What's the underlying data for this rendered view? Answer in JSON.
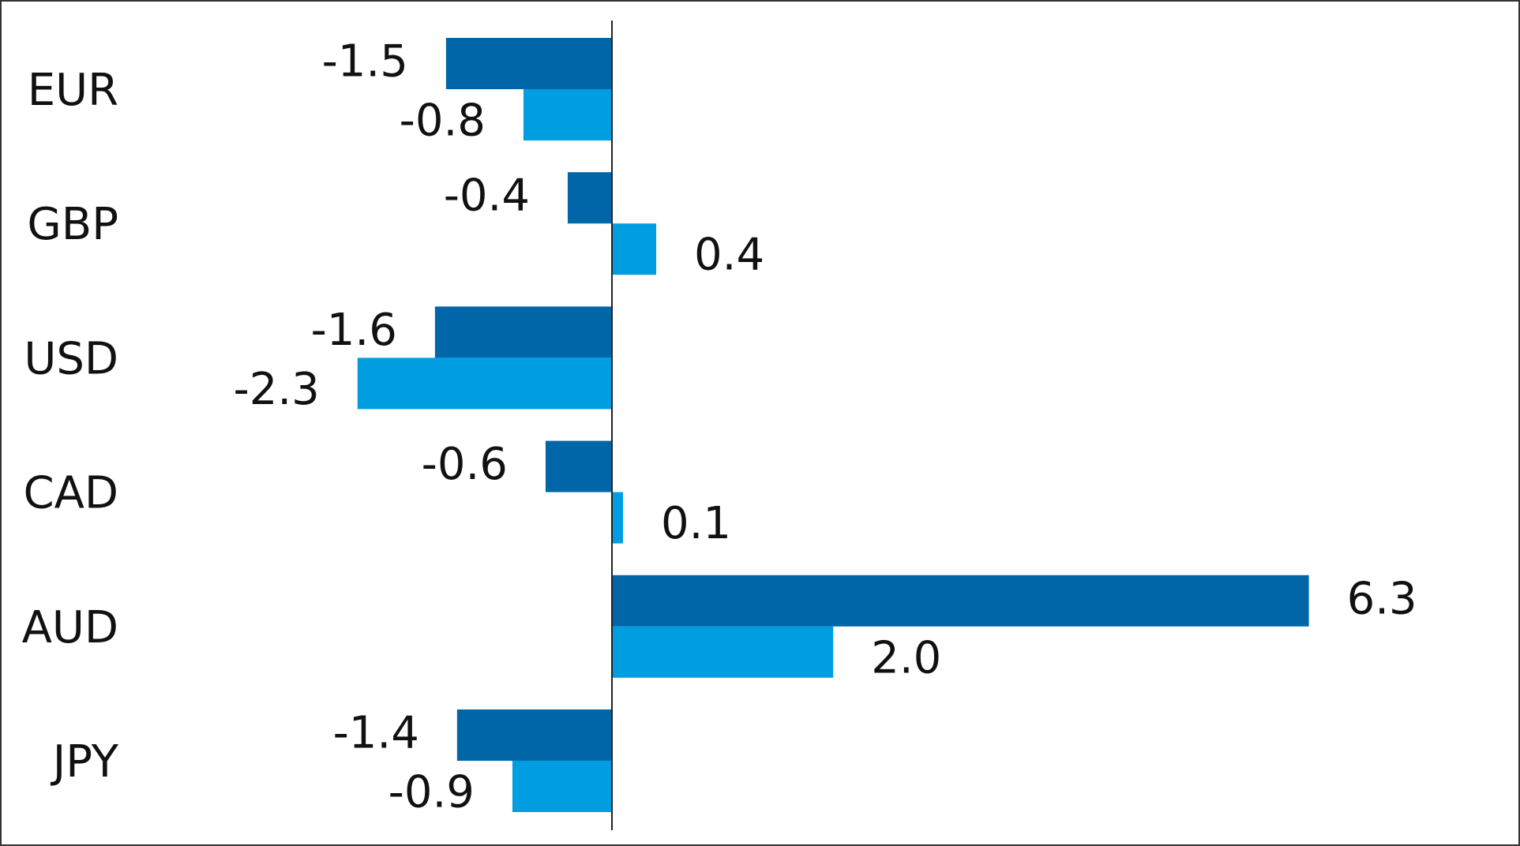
{
  "chart_data": {
    "type": "bar",
    "orientation": "horizontal",
    "categories": [
      "EUR",
      "GBP",
      "USD",
      "CAD",
      "AUD",
      "JPY"
    ],
    "series": [
      {
        "color": "#0066a8",
        "values": [
          -1.5,
          -0.4,
          -1.6,
          -0.6,
          6.3,
          -1.4
        ],
        "labels": [
          "-1.5",
          "-0.4",
          "-1.6",
          "-0.6",
          "6.3",
          "-1.4"
        ]
      },
      {
        "color": "#009ee0",
        "values": [
          -0.8,
          0.4,
          -2.3,
          0.1,
          2.0,
          -0.9
        ],
        "labels": [
          "-0.8",
          "0.4",
          "-2.3",
          "0.1",
          "2.0",
          "-0.9"
        ]
      }
    ],
    "title": "",
    "xlabel": "",
    "ylabel": "",
    "xlim": [
      -5.0,
      8.8
    ],
    "grid": false,
    "legend": "none"
  }
}
